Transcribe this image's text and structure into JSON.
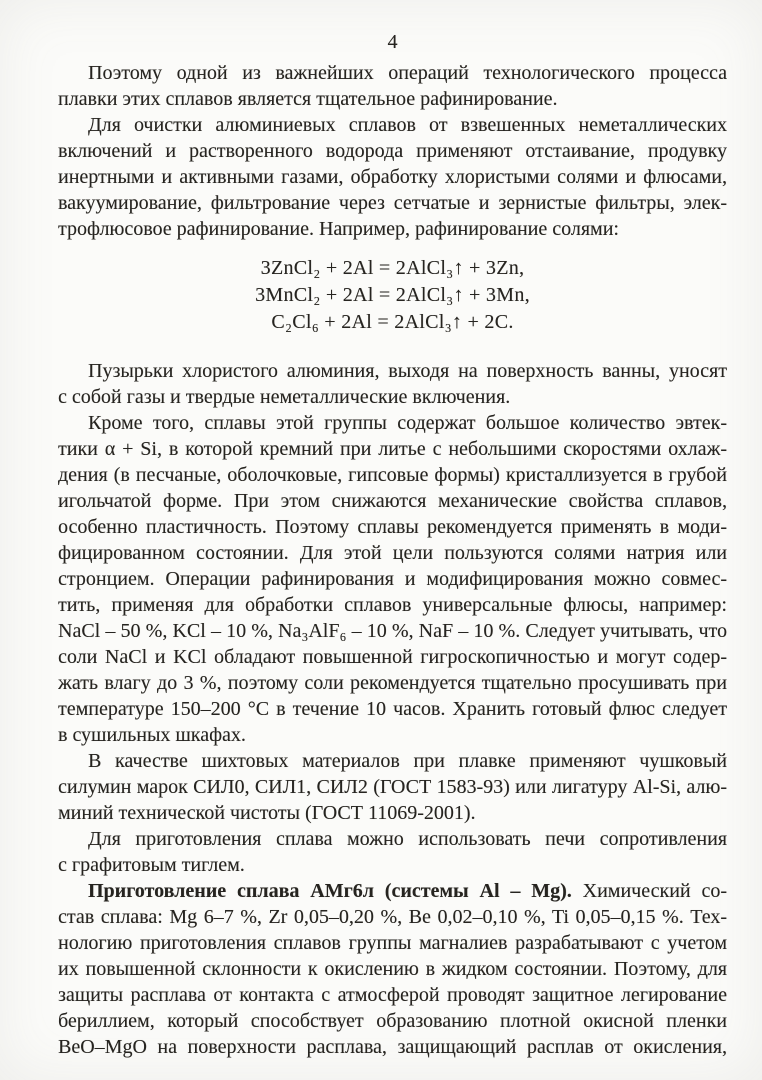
{
  "page": {
    "number": "4"
  },
  "content": {
    "blocks": [
      {
        "type": "paragraph",
        "indent": true,
        "last_justified": false,
        "lines": [
          "Поэтому одной из важнейших операций технологического процесса",
          "плавки этих сплавов является тщательное рафинирование."
        ]
      },
      {
        "type": "paragraph",
        "indent": true,
        "last_justified": false,
        "lines": [
          "Для очистки алюминиевых сплавов от взвешенных неметаллических",
          "включений и растворенного водорода применяют отстаивание, продувку",
          "инертными и активными газами, обработку хлористыми солями и флюсами,",
          "вакуумирование, фильтрование через сетчатые и зернистые фильтры, элек-",
          "трофлюсовое рафинирование. Например, рафинирование солями:"
        ]
      },
      {
        "type": "equations",
        "lines": [
          "3ZnCl₂ + 2Al = 2AlCl₃↑ + 3Zn,",
          "3MnCl₂ + 2Al = 2AlCl₃↑ + 3Mn,",
          "C₂Cl₆ + 2Al = 2AlCl₃↑ + 2C."
        ]
      },
      {
        "type": "paragraph",
        "indent": true,
        "last_justified": false,
        "lines": [
          "Пузырьки хлористого алюминия, выходя на поверхность ванны, уносят",
          "с собой газы и твердые неметаллические включения."
        ]
      },
      {
        "type": "paragraph",
        "indent": true,
        "last_justified": false,
        "lines": [
          "Кроме того, сплавы этой группы содержат большое количество эвтек-",
          "тики α + Si, в которой кремний при литье с небольшими скоростями охлаж-",
          "дения (в песчаные, оболочковые, гипсовые формы) кристаллизуется в грубой",
          "игольчатой форме. При этом снижаются механические свойства сплавов,",
          "особенно пластичность. Поэтому сплавы рекомендуется применять в моди-",
          "фицированном состоянии. Для этой цели пользуются солями натрия или",
          "стронцием. Операции рафинирования и модифицирования можно совмес-",
          "тить, применяя для обработки сплавов универсальные флюсы, например:",
          "NaCl – 50 %, KCl – 10 %, Na₃AlF₆ – 10 %, NaF – 10 %. Следует учитывать, что",
          "соли NaCl и KCl обладают повышенной гигроскопичностью и могут содер-",
          "жать влагу до 3 %, поэтому соли рекомендуется тщательно просушивать при",
          "температуре 150–200 °С в течение 10 часов. Хранить готовый флюс следует",
          "в сушильных шкафах."
        ]
      },
      {
        "type": "paragraph",
        "indent": true,
        "last_justified": false,
        "lines": [
          "В качестве шихтовых материалов при плавке применяют чушковый",
          "силумин марок СИЛ0, СИЛ1, СИЛ2 (ГОСТ 1583-93) или лигатуру Al-Si, алю-",
          "миний технической чистоты (ГОСТ 11069-2001)."
        ]
      },
      {
        "type": "paragraph",
        "indent": true,
        "last_justified": false,
        "lines": [
          "Для приготовления сплава можно использовать печи сопротивления",
          "с графитовым тиглем."
        ]
      },
      {
        "type": "paragraph",
        "indent": true,
        "last_justified": true,
        "lines": [
          {
            "bold": "Приготовление сплава АМг6л (системы Al – Mg).",
            "text": " Химический со-"
          },
          "став сплава: Mg 6–7 %, Zr 0,05–0,20 %, Be 0,02–0,10 %, Ti 0,05–0,15 %. Тех-",
          "нологию приготовления сплавов группы магналиев разрабатывают с учетом",
          "их повышенной склонности к окислению в жидком состоянии. Поэтому, для",
          "защиты расплава от контакта с атмосферой проводят защитное легирование",
          "бериллием, который способствует образованию плотной окисной пленки",
          "BeO–MgO на поверхности расплава, защищающий расплав от окисления,"
        ]
      }
    ]
  }
}
